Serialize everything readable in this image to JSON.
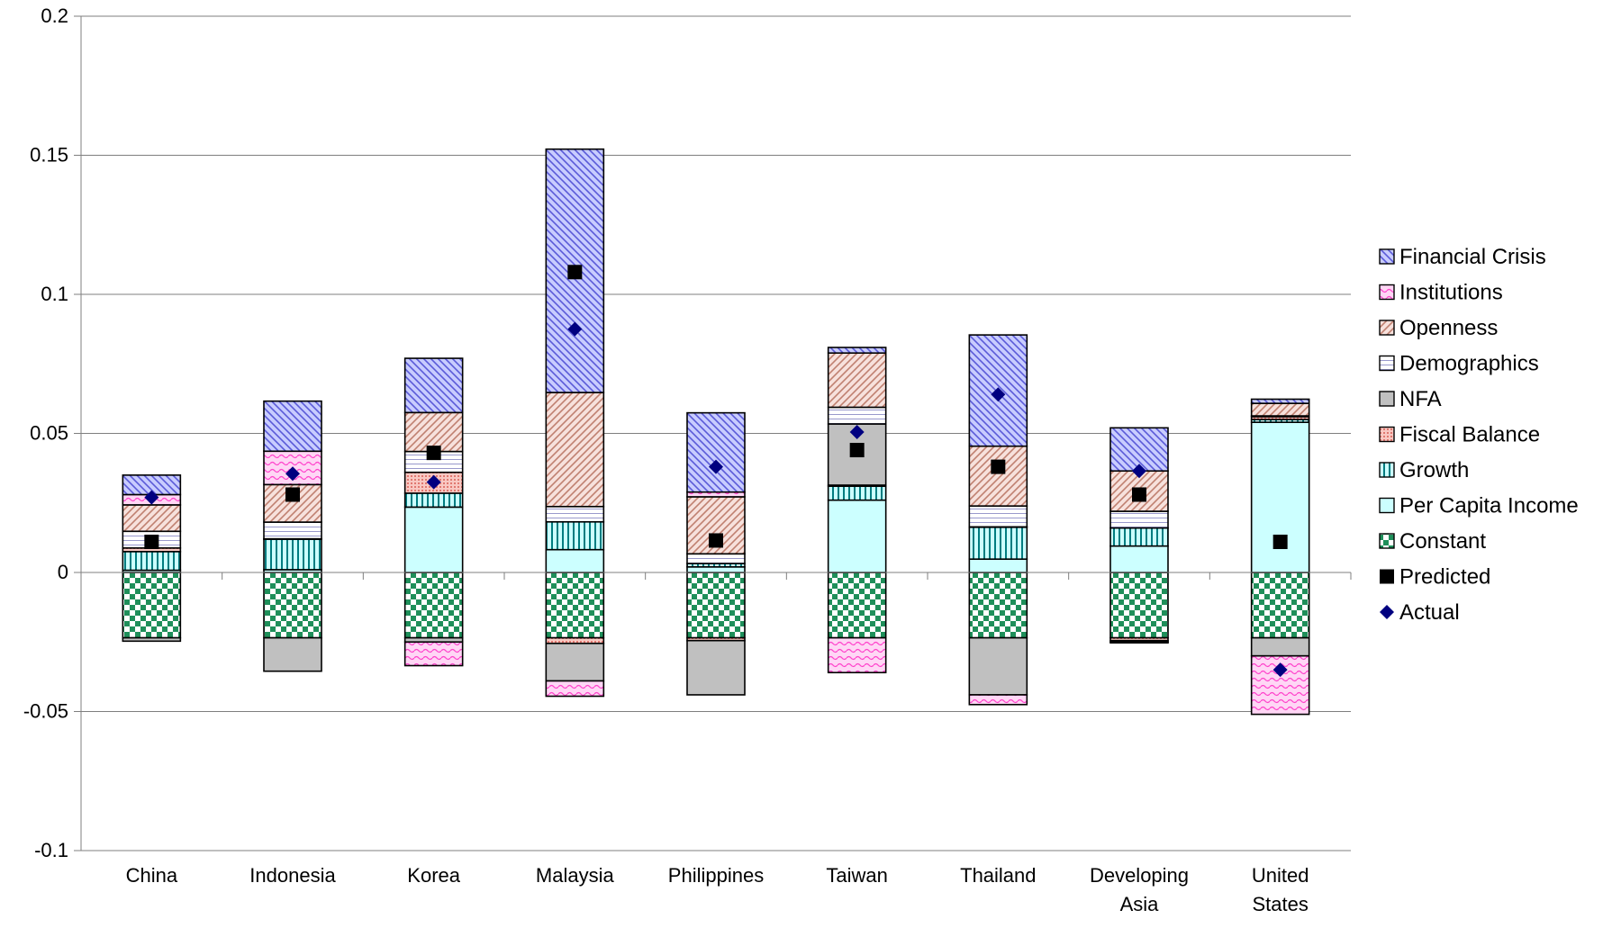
{
  "chart_data": {
    "type": "bar",
    "stacked": true,
    "title": "",
    "xlabel": "",
    "ylabel": "",
    "ylim": [
      -0.1,
      0.2
    ],
    "yticks": [
      -0.1,
      -0.05,
      0,
      0.05,
      0.1,
      0.15,
      0.2
    ],
    "ytick_labels": [
      "-0.1",
      "-0.05",
      "0",
      "0.05",
      "0.1",
      "0.15",
      "0.2"
    ],
    "grid": true,
    "legend_position": "right",
    "categories": [
      [
        "China"
      ],
      [
        "Indonesia"
      ],
      [
        "Korea"
      ],
      [
        "Malaysia"
      ],
      [
        "Philippines"
      ],
      [
        "Taiwan"
      ],
      [
        "Thailand"
      ],
      [
        "Developing",
        "Asia"
      ],
      [
        "United",
        "States"
      ]
    ],
    "series": [
      {
        "name": "Constant",
        "pattern": "checker",
        "color": "#1f8f5a",
        "values": [
          -0.0235,
          -0.0235,
          -0.0235,
          -0.0235,
          -0.0235,
          -0.0235,
          -0.0235,
          -0.0235,
          -0.0235
        ]
      },
      {
        "name": "Per Capita Income",
        "pattern": "solid",
        "color": "#ccffff",
        "values": [
          0.0008,
          0.001,
          0.0235,
          0.0082,
          0.002,
          0.026,
          0.0048,
          0.0095,
          0.054
        ]
      },
      {
        "name": "Growth",
        "pattern": "vlines",
        "color": "#007c80",
        "values": [
          0.0067,
          0.011,
          0.005,
          0.01,
          0.0012,
          0.005,
          0.0115,
          0.0065,
          0.001
        ]
      },
      {
        "name": "Fiscal Balance",
        "pattern": "dots",
        "color": "#f4a6a0",
        "values": [
          0.0013,
          0.0001,
          0.0075,
          -0.002,
          -0.001,
          0.0004,
          0.0001,
          -0.001,
          0.001
        ]
      },
      {
        "name": "NFA",
        "pattern": "solid",
        "color": "#c0c0c0",
        "values": [
          -0.0012,
          -0.012,
          -0.0015,
          -0.0135,
          -0.0195,
          0.022,
          -0.0205,
          -0.0005,
          -0.0065
        ]
      },
      {
        "name": "Demographics",
        "pattern": "hlines",
        "color": "#9999cc",
        "values": [
          0.006,
          0.006,
          0.0075,
          0.0055,
          0.0035,
          0.006,
          0.0075,
          0.006,
          0.0003
        ]
      },
      {
        "name": "Openness",
        "pattern": "diag",
        "color": "#c08070",
        "values": [
          0.0095,
          0.0135,
          0.014,
          0.041,
          0.0205,
          0.0195,
          0.0215,
          0.0145,
          0.0045
        ]
      },
      {
        "name": "Institutions",
        "pattern": "wave",
        "color": "#ff44cc",
        "values": [
          0.0037,
          0.012,
          -0.0085,
          -0.0055,
          0.0017,
          -0.0125,
          -0.0035,
          -0.0003,
          -0.021
        ]
      },
      {
        "name": "Financial Crisis",
        "pattern": "diag2",
        "color": "#5a5ad8",
        "values": [
          0.007,
          0.018,
          0.0195,
          0.0875,
          0.0285,
          0.002,
          0.04,
          0.0155,
          0.0015
        ]
      }
    ],
    "markers": [
      {
        "name": "Predicted",
        "shape": "square",
        "color": "#000000",
        "values": [
          0.011,
          0.028,
          0.043,
          0.108,
          0.0115,
          0.044,
          0.038,
          0.028,
          0.011
        ]
      },
      {
        "name": "Actual",
        "shape": "diamond",
        "color": "#000080",
        "values": [
          0.027,
          0.0355,
          0.0325,
          0.0875,
          0.038,
          0.0505,
          0.064,
          0.0365,
          -0.035
        ]
      }
    ],
    "legend_order": [
      "Financial Crisis",
      "Institutions",
      "Openness",
      "Demographics",
      "NFA",
      "Fiscal Balance",
      "Growth",
      "Per Capita Income",
      "Constant",
      "Predicted",
      "Actual"
    ]
  }
}
